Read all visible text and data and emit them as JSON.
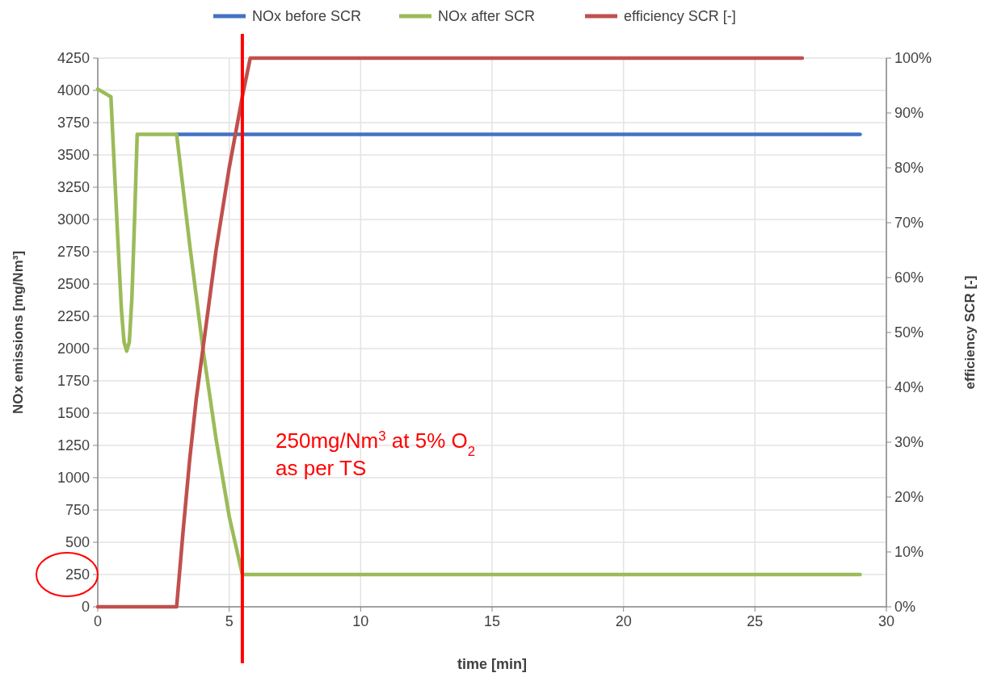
{
  "chart_data": {
    "type": "line",
    "xlabel": "time [min]",
    "ylabel": "NOx emissions [mg/Nm³]",
    "y2label": "efficiency SCR [-]",
    "xlim": [
      0,
      30
    ],
    "xticks": [
      0,
      5,
      10,
      15,
      20,
      25,
      30
    ],
    "ylim": [
      0,
      4250
    ],
    "yticks": [
      0,
      250,
      500,
      750,
      1000,
      1250,
      1500,
      1750,
      2000,
      2250,
      2500,
      2750,
      3000,
      3250,
      3500,
      3750,
      4000,
      4250
    ],
    "y2lim": [
      0,
      100
    ],
    "y2ticks": [
      {
        "value": 0,
        "label": "0%"
      },
      {
        "value": 10,
        "label": "10%"
      },
      {
        "value": 20,
        "label": "20%"
      },
      {
        "value": 30,
        "label": "30%"
      },
      {
        "value": 40,
        "label": "40%"
      },
      {
        "value": 50,
        "label": "50%"
      },
      {
        "value": 60,
        "label": "60%"
      },
      {
        "value": 70,
        "label": "70%"
      },
      {
        "value": 80,
        "label": "80%"
      },
      {
        "value": 90,
        "label": "90%"
      },
      {
        "value": 100,
        "label": "100%"
      }
    ],
    "grid": true,
    "legend": "top",
    "marker": "none",
    "line_style": "solid",
    "series": [
      {
        "name": "NOx before SCR",
        "color": "#4472c4",
        "x": [
          3,
          29
        ],
        "values": [
          3660,
          3660
        ]
      },
      {
        "name": "NOx after SCR",
        "color": "#9bbb59",
        "x": [
          0,
          0.5,
          0.75,
          0.9,
          1.0,
          1.1,
          1.2,
          1.3,
          1.4,
          1.5,
          3,
          3.5,
          4,
          4.5,
          5,
          5.5,
          29
        ],
        "values": [
          4010,
          3950,
          2900,
          2300,
          2050,
          1980,
          2050,
          2400,
          3000,
          3660,
          3660,
          2800,
          2000,
          1300,
          700,
          250,
          250
        ]
      },
      {
        "name": "efficiency SCR [-]",
        "color": "#c0504d",
        "axis": "y2",
        "x": [
          0,
          3,
          3.25,
          3.5,
          3.75,
          4,
          4.5,
          5,
          5.5,
          5.8,
          26.8
        ],
        "values": [
          0,
          0,
          14,
          27,
          38,
          47,
          65,
          80,
          93,
          100,
          100
        ]
      }
    ],
    "ref_lines": [
      {
        "axis": "x",
        "value": 5.5,
        "color": "#ff0000"
      }
    ],
    "annotations": [
      "250mg/Nm$^{3}$ at 5% O$_{2}$",
      "as per TS"
    ]
  }
}
